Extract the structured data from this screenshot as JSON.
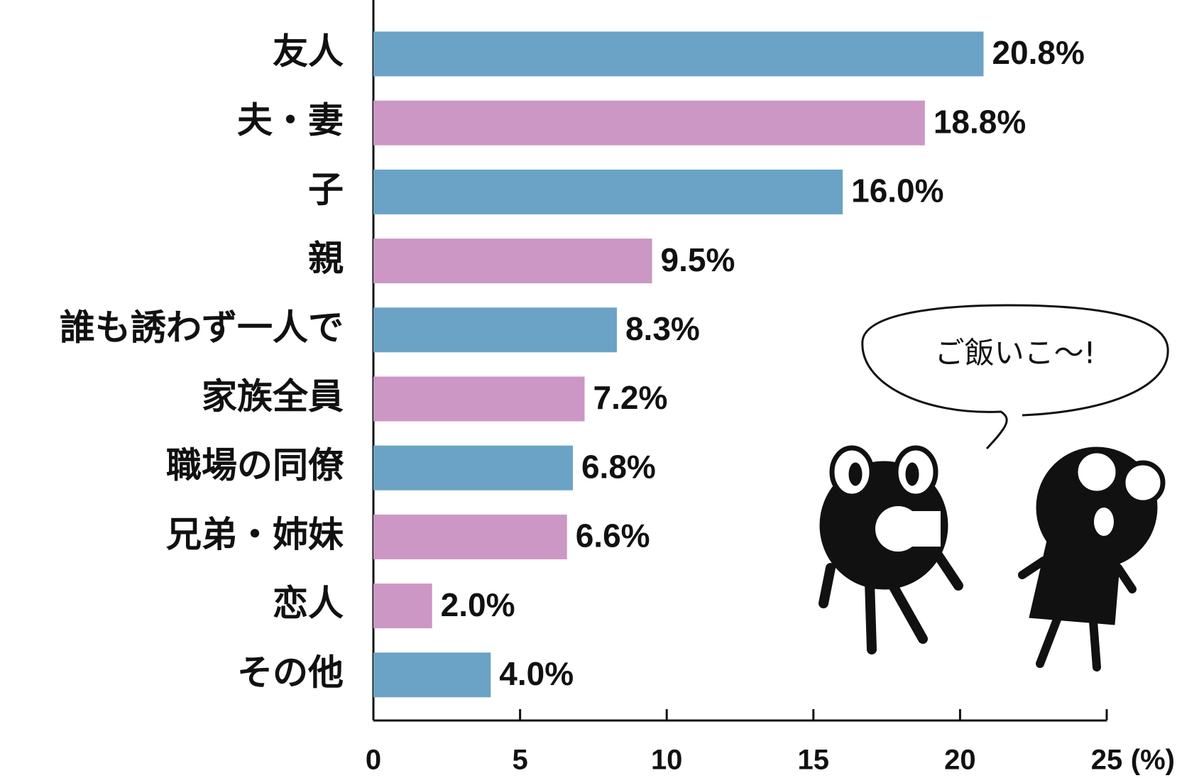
{
  "chart_data": {
    "type": "bar",
    "orientation": "horizontal",
    "categories": [
      "友人",
      "夫・妻",
      "子",
      "親",
      "誰も誘わず一人で",
      "家族全員",
      "職場の同僚",
      "兄弟・姉妹",
      "恋人",
      "その他"
    ],
    "values": [
      20.8,
      18.8,
      16.0,
      9.5,
      8.3,
      7.2,
      6.8,
      6.6,
      2.0,
      4.0
    ],
    "value_labels": [
      "20.8%",
      "18.8%",
      "16.0%",
      "9.5%",
      "8.3%",
      "7.2%",
      "6.8%",
      "6.6%",
      "2.0%",
      "4.0%"
    ],
    "colors": [
      "#6aa3c5",
      "#cc97c4",
      "#6aa3c5",
      "#cc97c4",
      "#6aa3c5",
      "#cc97c4",
      "#6aa3c5",
      "#cc97c4",
      "#cc97c4",
      "#6aa3c5"
    ],
    "xlim": [
      0,
      25
    ],
    "xticks": [
      0,
      5,
      10,
      15,
      20,
      25
    ],
    "x_unit": "(%)",
    "annotation": "ご飯いこ〜!"
  }
}
